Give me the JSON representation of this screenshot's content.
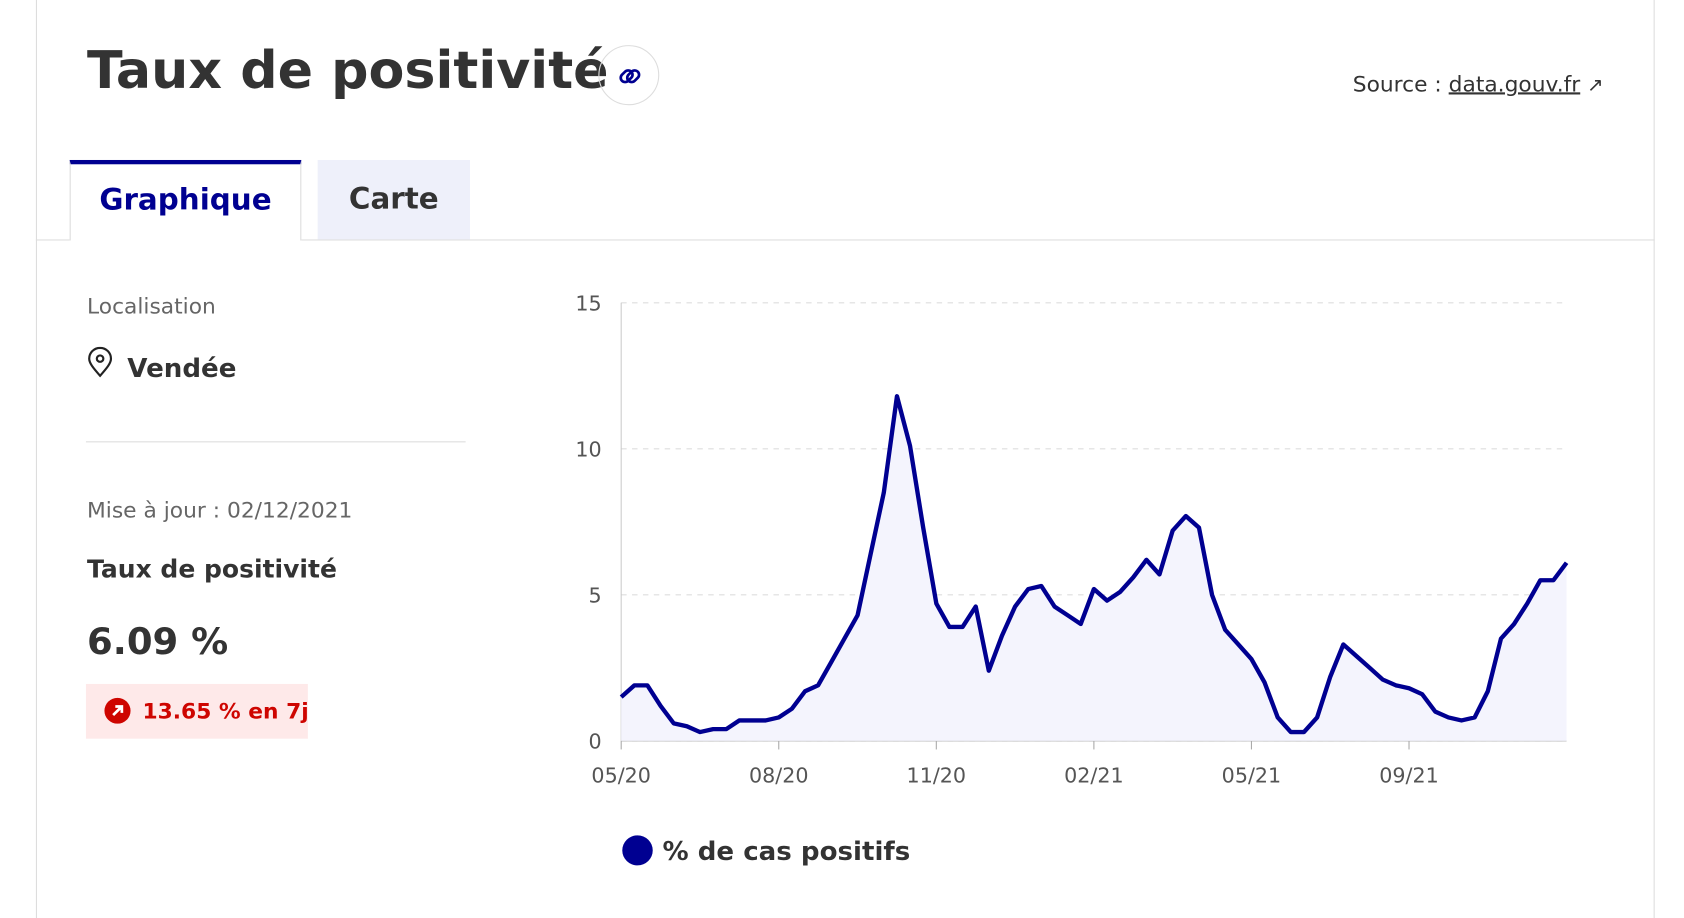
{
  "header": {
    "title": "Taux de positivité",
    "source_label": "Source :",
    "source_link": "data.gouv.fr"
  },
  "tabs": [
    "Graphique",
    "Carte"
  ],
  "sidebar": {
    "location_label": "Localisation",
    "location": "Vendée",
    "update": "Mise à jour : 02/12/2021",
    "indicator": "Taux de positivité",
    "value": "6.09 %",
    "change": "13.65 % en 7j"
  },
  "chart_data": {
    "type": "area",
    "categories": [
      "05/20",
      null,
      null,
      null,
      null,
      null,
      null,
      null,
      null,
      null,
      null,
      null,
      "08/20",
      null,
      null,
      null,
      null,
      null,
      null,
      null,
      null,
      null,
      null,
      null,
      "11/20",
      null,
      null,
      null,
      null,
      null,
      null,
      null,
      null,
      null,
      null,
      null,
      "02/21",
      null,
      null,
      null,
      null,
      null,
      null,
      null,
      null,
      null,
      null,
      null,
      "05/21",
      null,
      null,
      null,
      null,
      null,
      null,
      null,
      null,
      null,
      null,
      null,
      "09/21",
      null,
      null,
      null,
      null,
      null,
      null,
      null,
      null,
      null,
      null,
      null,
      null
    ],
    "series": [
      {
        "name": "% de cas positifs",
        "color": "#000091",
        "values": [
          1.5,
          1.9,
          1.9,
          1.2,
          0.6,
          0.5,
          0.3,
          0.4,
          0.4,
          0.7,
          0.7,
          0.7,
          0.8,
          1.1,
          1.7,
          1.9,
          2.7,
          3.5,
          4.3,
          6.4,
          8.5,
          11.8,
          10.1,
          7.3,
          4.7,
          3.9,
          3.9,
          4.6,
          2.4,
          3.6,
          4.6,
          5.2,
          5.3,
          4.6,
          4.3,
          4.0,
          5.2,
          4.8,
          5.1,
          5.6,
          6.2,
          5.7,
          7.2,
          7.7,
          7.3,
          5.0,
          3.8,
          3.3,
          2.8,
          2.0,
          0.8,
          0.3,
          0.3,
          0.8,
          2.2,
          3.3,
          2.9,
          2.5,
          2.1,
          1.9,
          1.8,
          1.6,
          1.0,
          0.8,
          0.7,
          0.8,
          1.7,
          3.5,
          4.0,
          4.7,
          5.5,
          5.5,
          6.1
        ]
      }
    ],
    "ylim": [
      0,
      15
    ],
    "yticks": [
      0,
      5,
      10,
      15
    ],
    "grid": true
  }
}
